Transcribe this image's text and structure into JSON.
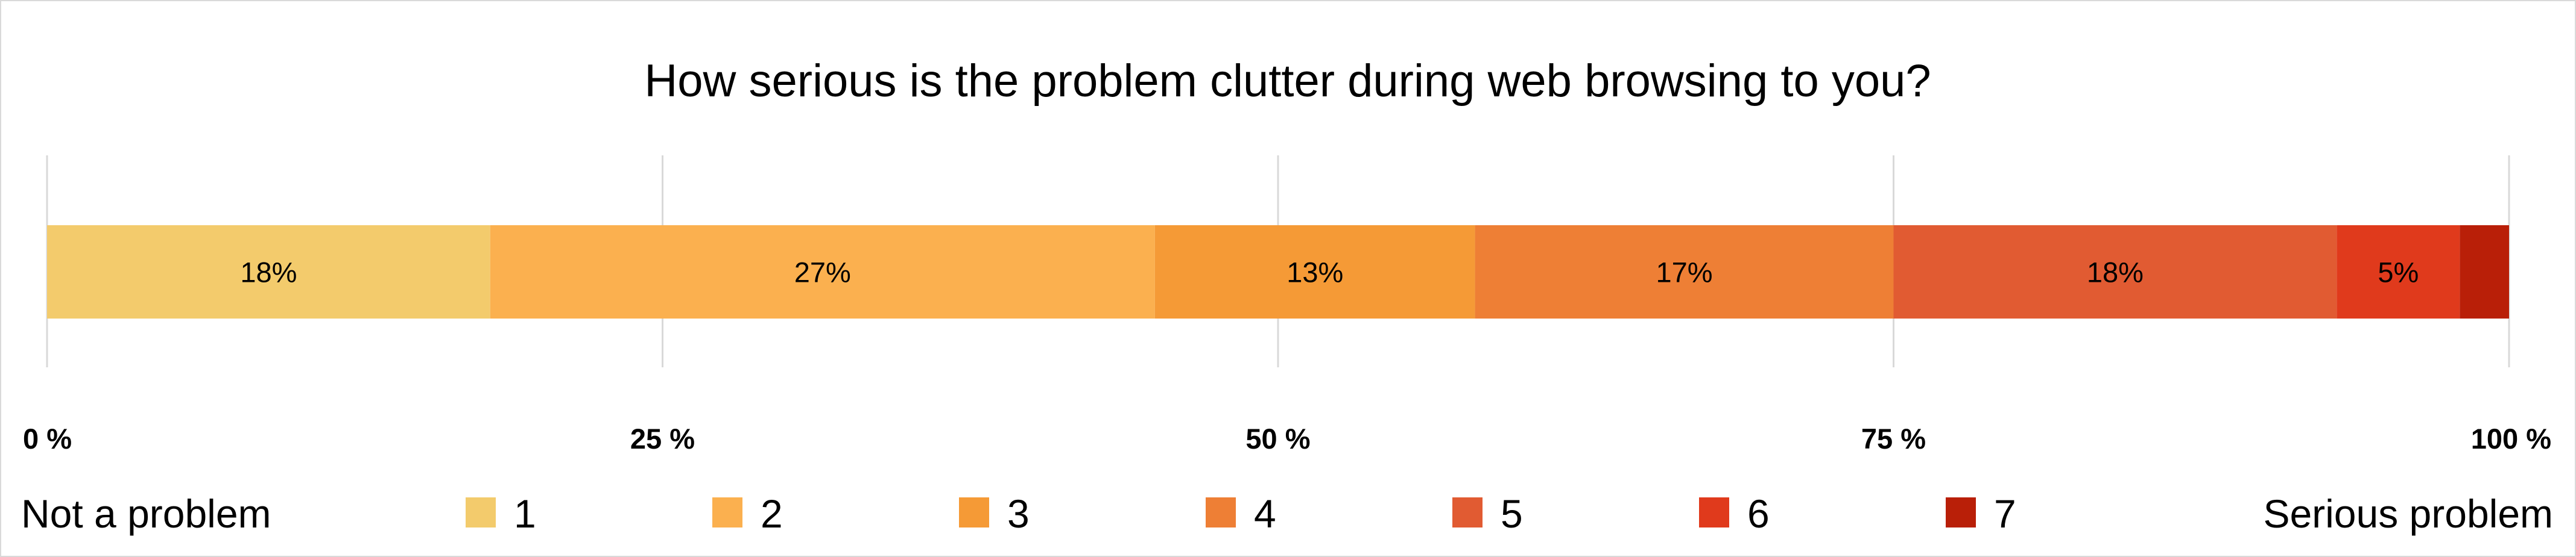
{
  "chart_data": {
    "type": "bar",
    "orientation": "horizontal-stacked",
    "title": "How serious is the problem clutter during web browsing to you?",
    "xlabel": "",
    "ylabel": "",
    "xlim": [
      0,
      100
    ],
    "x_ticks": [
      "0 %",
      "25 %",
      "50 %",
      "75 %",
      "100 %"
    ],
    "x_tick_values": [
      0,
      25,
      50,
      75,
      100
    ],
    "grid": true,
    "legend_position": "bottom",
    "legend_left_label": "Not a problem",
    "legend_right_label": "Serious problem",
    "series": [
      {
        "name": "1",
        "value": 18,
        "label": "18%",
        "color": "#F3CB6C"
      },
      {
        "name": "2",
        "value": 27,
        "label": "27%",
        "color": "#FBB04F"
      },
      {
        "name": "3",
        "value": 13,
        "label": "13%",
        "color": "#F59A36"
      },
      {
        "name": "4",
        "value": 17,
        "label": "17%",
        "color": "#EE7F35"
      },
      {
        "name": "5",
        "value": 18,
        "label": "18%",
        "color": "#E15B32"
      },
      {
        "name": "6",
        "value": 5,
        "label": "5%",
        "color": "#E03A1C"
      },
      {
        "name": "7",
        "value": 2,
        "label": "",
        "color": "#B91F08"
      }
    ]
  }
}
